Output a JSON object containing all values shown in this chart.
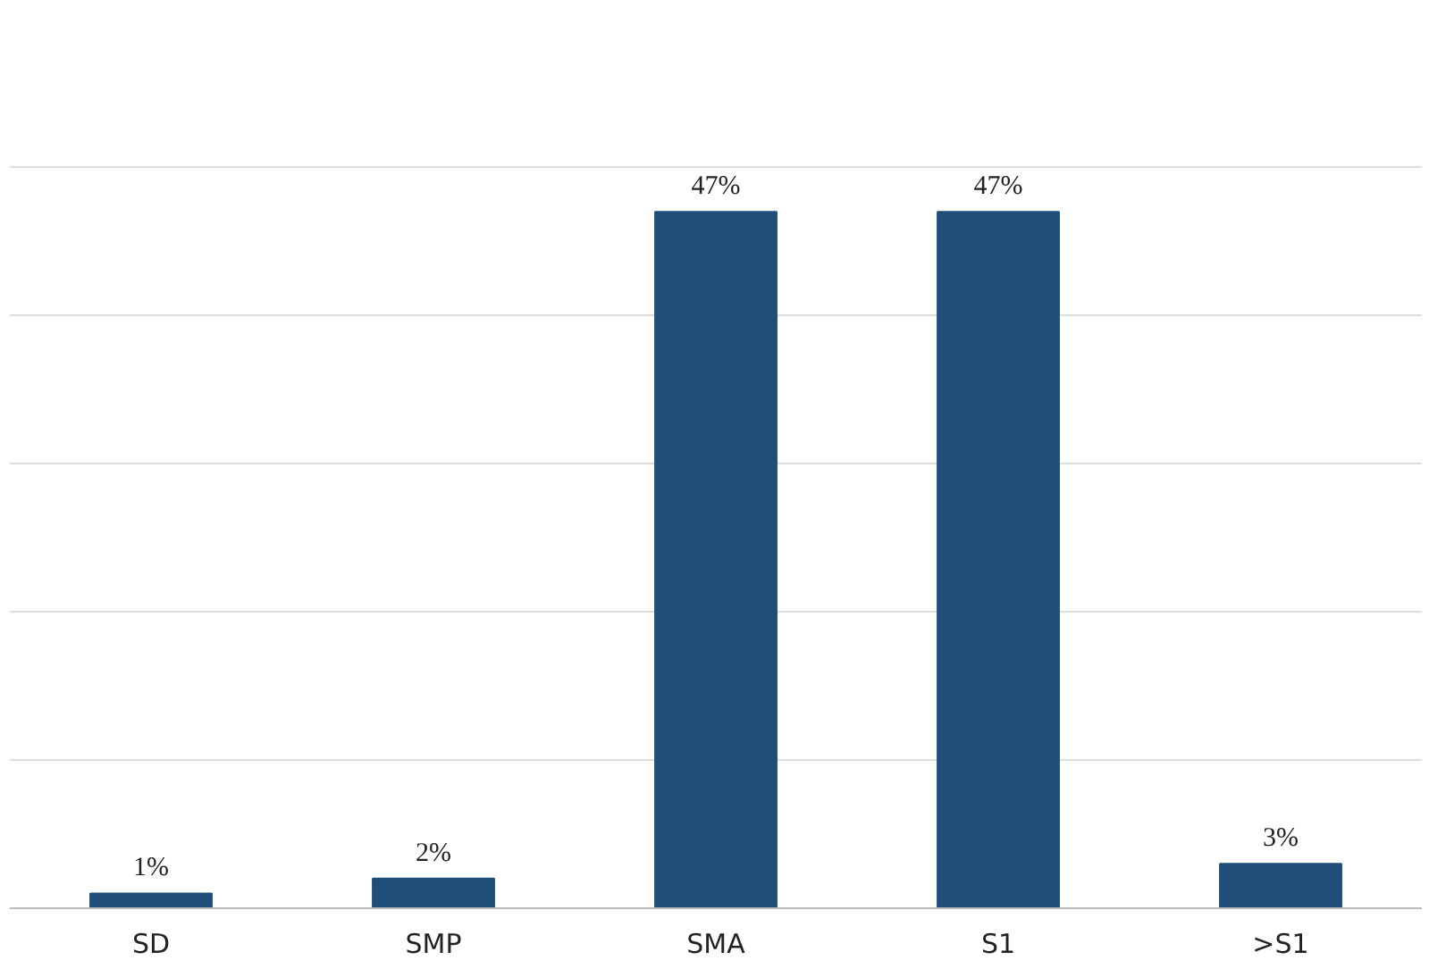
{
  "chart_data": {
    "type": "bar",
    "categories": [
      "SD",
      "SMP",
      "SMA",
      "S1",
      ">S1"
    ],
    "values": [
      1,
      2,
      47,
      47,
      3
    ],
    "value_labels": [
      "1%",
      "2%",
      "47%",
      "47%",
      "3%"
    ],
    "color": "#1f4e79",
    "yticks": [
      {
        "value": 0,
        "label": null
      },
      {
        "value": 10,
        "label": null
      },
      {
        "value": 20,
        "label": null
      },
      {
        "value": 30,
        "label": null
      },
      {
        "value": 40,
        "label": null
      },
      {
        "value": 50,
        "label": null
      }
    ],
    "tick_labels": "x",
    "grid": "y"
  }
}
